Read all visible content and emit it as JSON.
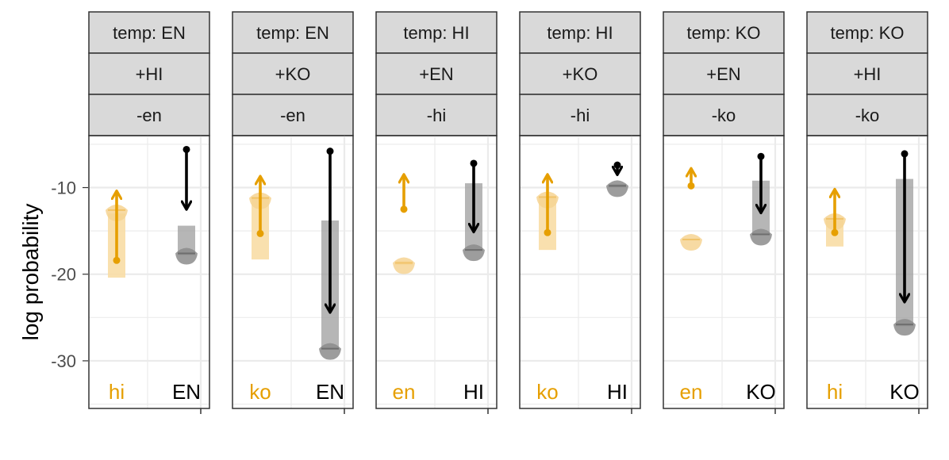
{
  "chart_data": {
    "type": "faceted-arrow-range",
    "ylabel": "log probability",
    "yticks": [
      -10,
      -20,
      -30
    ],
    "ylim": [
      -35.5,
      -4
    ],
    "grid": true,
    "colors": {
      "lowercase": "#E69F00",
      "uppercase": "#000000",
      "lowercase_band": "#F8DDA5",
      "uppercase_band": "#9E9E9E",
      "strip_fill": "#D9D9D9",
      "strip_border": "#333333",
      "grid": "#EBEBEB",
      "panel_border": "#333333"
    },
    "panels": [
      {
        "strips": [
          "temp: EN",
          "+HI",
          "-en"
        ],
        "groups": [
          {
            "label": "hi",
            "color_role": "lowercase",
            "band": [
              -20.4,
              -13.0
            ],
            "dist": -12.6,
            "arrow_from": -18.4,
            "arrow_to": -10.5
          },
          {
            "label": "EN",
            "color_role": "uppercase",
            "band": [
              -17.8,
              -14.4
            ],
            "dist": -17.6,
            "arrow_from": -5.6,
            "arrow_to": -12.4
          }
        ]
      },
      {
        "strips": [
          "temp: EN",
          "+KO",
          "-en"
        ],
        "groups": [
          {
            "label": "ko",
            "color_role": "lowercase",
            "band": [
              -18.3,
              -11.3
            ],
            "dist": -11.2,
            "arrow_from": -15.3,
            "arrow_to": -8.8
          },
          {
            "label": "EN",
            "color_role": "uppercase",
            "band": [
              -28.6,
              -13.8
            ],
            "dist": -28.6,
            "arrow_from": -5.8,
            "arrow_to": -24.3
          }
        ]
      },
      {
        "strips": [
          "temp: HI",
          "+EN",
          "-hi"
        ],
        "groups": [
          {
            "label": "en",
            "color_role": "lowercase",
            "band": [
              -18.9,
              -18.5
            ],
            "dist": -18.7,
            "arrow_from": -12.5,
            "arrow_to": -8.6
          },
          {
            "label": "HI",
            "color_role": "uppercase",
            "band": [
              -17.3,
              -9.5
            ],
            "dist": -17.2,
            "arrow_from": -7.2,
            "arrow_to": -15.0
          }
        ]
      },
      {
        "strips": [
          "temp: HI",
          "+KO",
          "-hi"
        ],
        "groups": [
          {
            "label": "ko",
            "color_role": "lowercase",
            "band": [
              -17.2,
              -11.1
            ],
            "dist": -11.1,
            "arrow_from": -15.2,
            "arrow_to": -8.6
          },
          {
            "label": "HI",
            "color_role": "uppercase",
            "band": [
              -9.9,
              -9.6
            ],
            "dist": -9.8,
            "arrow_from": -7.4,
            "arrow_to": -8.4
          }
        ]
      },
      {
        "strips": [
          "temp: KO",
          "+EN",
          "-ko"
        ],
        "groups": [
          {
            "label": "en",
            "color_role": "lowercase",
            "band": [
              -16.1,
              -15.9
            ],
            "dist": -16.0,
            "arrow_from": -9.8,
            "arrow_to": -7.9
          },
          {
            "label": "KO",
            "color_role": "uppercase",
            "band": [
              -15.4,
              -9.2
            ],
            "dist": -15.4,
            "arrow_from": -6.4,
            "arrow_to": -12.8
          }
        ]
      },
      {
        "strips": [
          "temp: KO",
          "+HI",
          "-ko"
        ],
        "groups": [
          {
            "label": "hi",
            "color_role": "lowercase",
            "band": [
              -16.8,
              -13.6
            ],
            "dist": -13.6,
            "arrow_from": -15.2,
            "arrow_to": -10.3
          },
          {
            "label": "KO",
            "color_role": "uppercase",
            "band": [
              -26.0,
              -9.0
            ],
            "dist": -25.8,
            "arrow_from": -6.1,
            "arrow_to": -23.1
          }
        ]
      }
    ]
  }
}
